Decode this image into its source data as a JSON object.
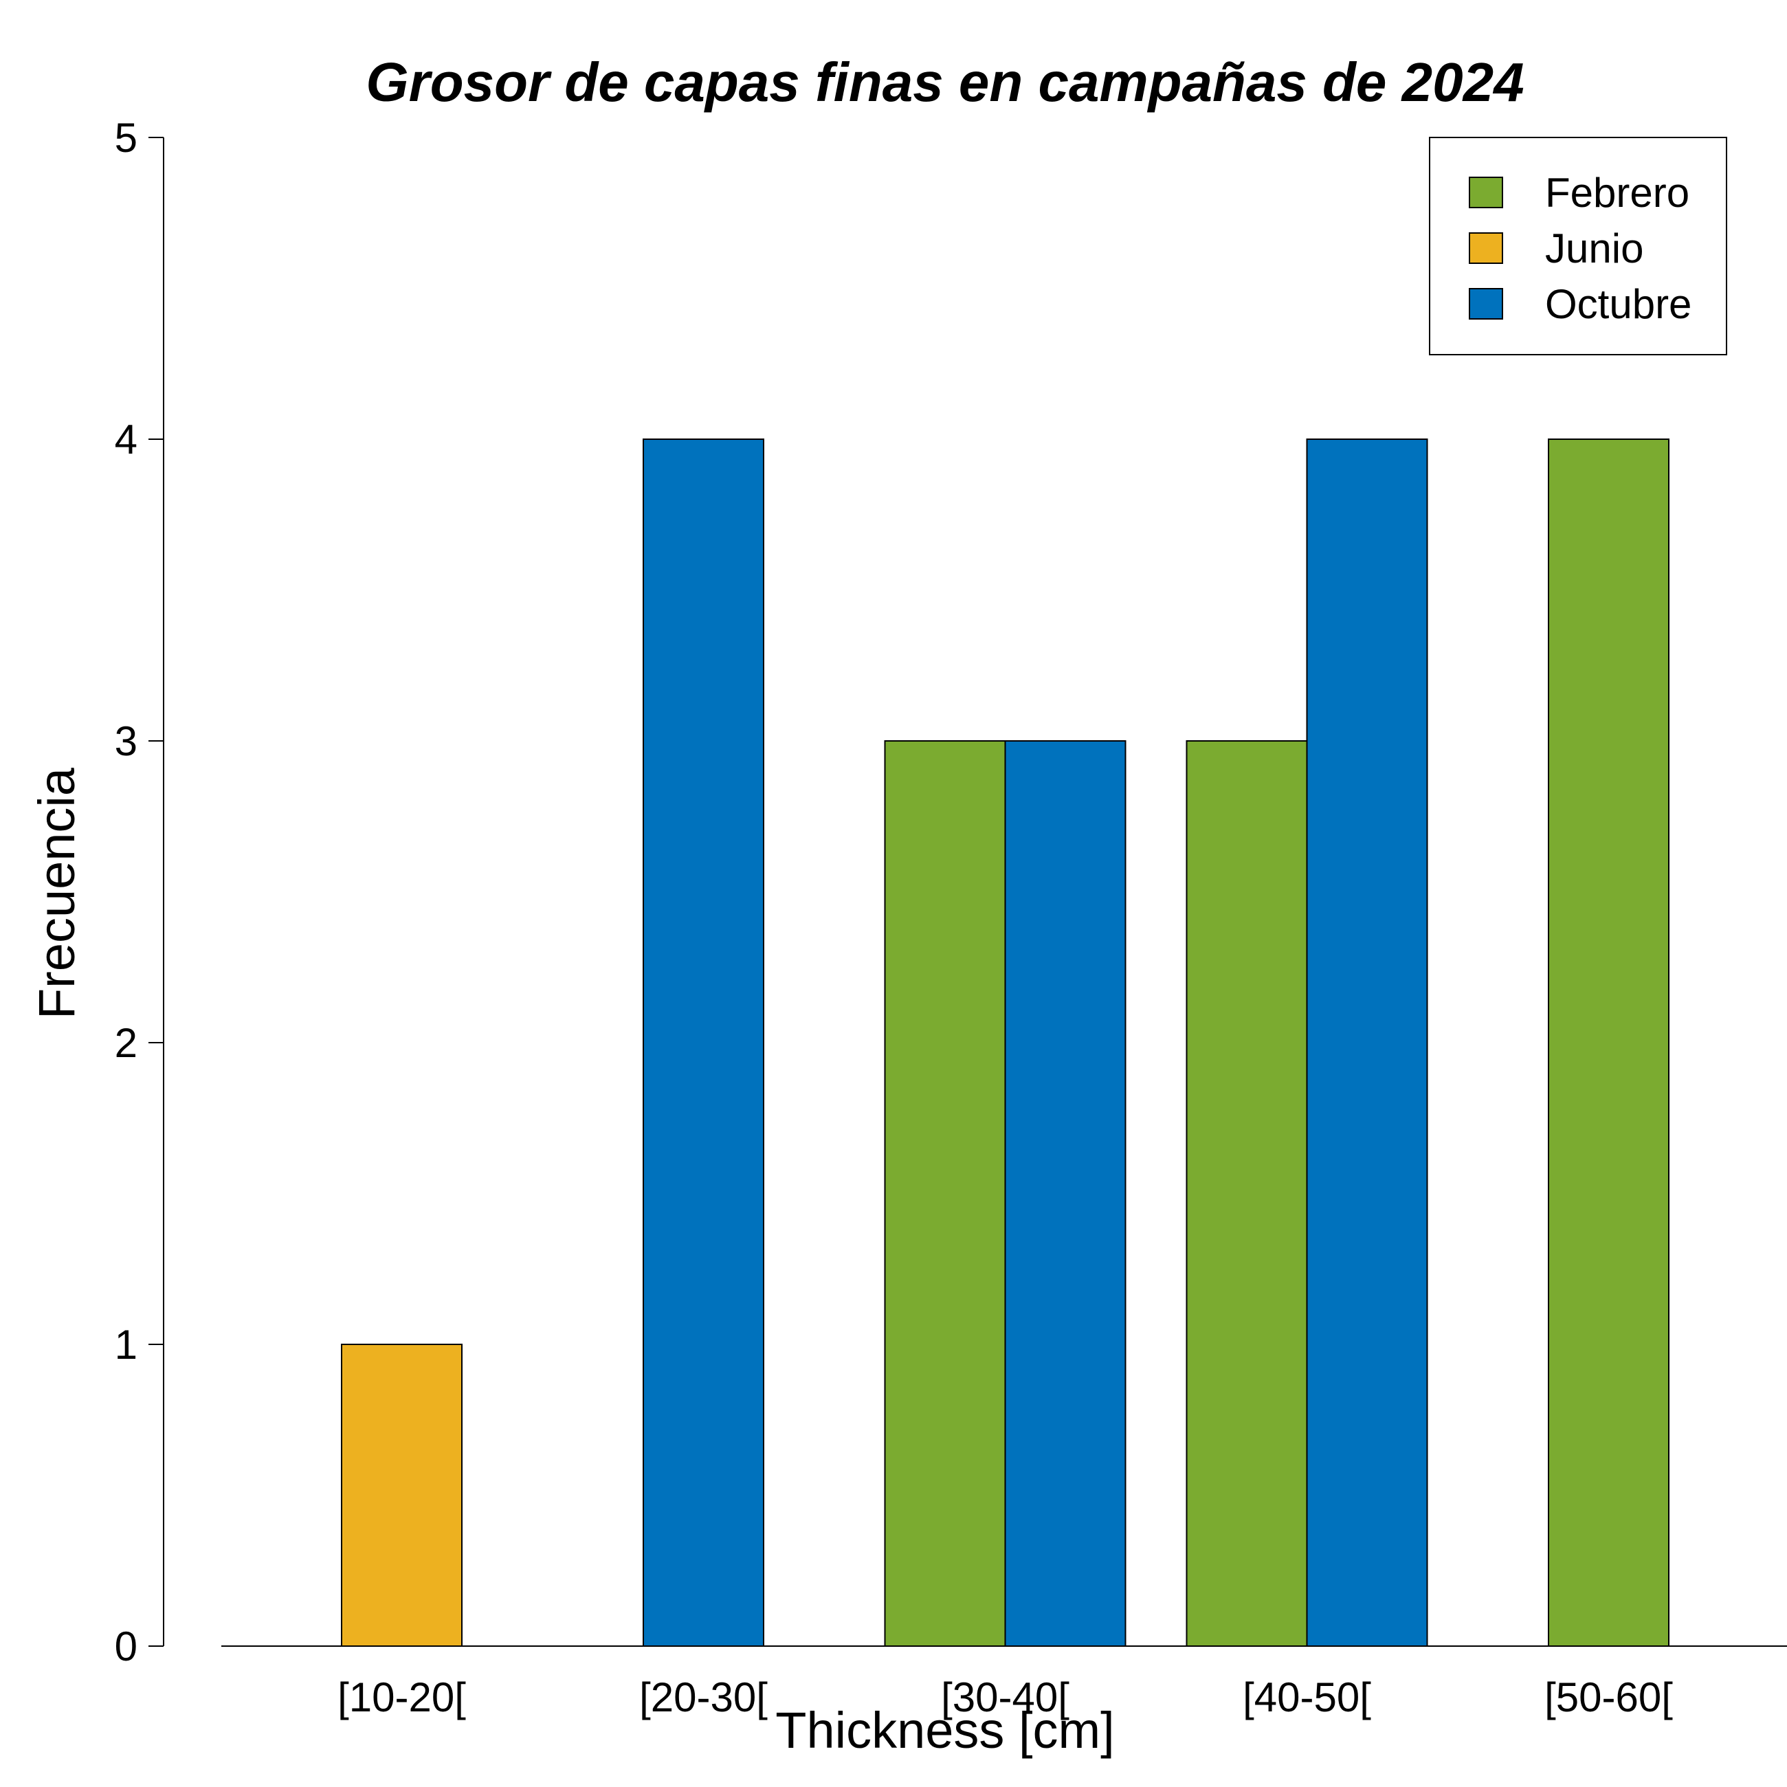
{
  "chart_data": {
    "type": "bar",
    "title": "Grosor de capas finas en campañas de 2024",
    "xlabel": "Thickness [cm]",
    "ylabel": "Frecuencia",
    "categories": [
      "[10-20[",
      "[20-30[",
      "[30-40[",
      "[40-50[",
      "[50-60["
    ],
    "ylim": [
      0,
      5
    ],
    "yticks": [
      "0",
      "1",
      "2",
      "3",
      "4",
      "5"
    ],
    "series": [
      {
        "name": "Febrero",
        "color": "#7BAB30",
        "values": [
          0,
          0,
          3,
          3,
          4
        ]
      },
      {
        "name": "Junio",
        "color": "#EDB120",
        "values": [
          1,
          0,
          0,
          0,
          0
        ]
      },
      {
        "name": "Octubre",
        "color": "#0072BD",
        "values": [
          0,
          4,
          3,
          4,
          0
        ]
      }
    ],
    "grid": false,
    "legend_position": "top-right"
  }
}
